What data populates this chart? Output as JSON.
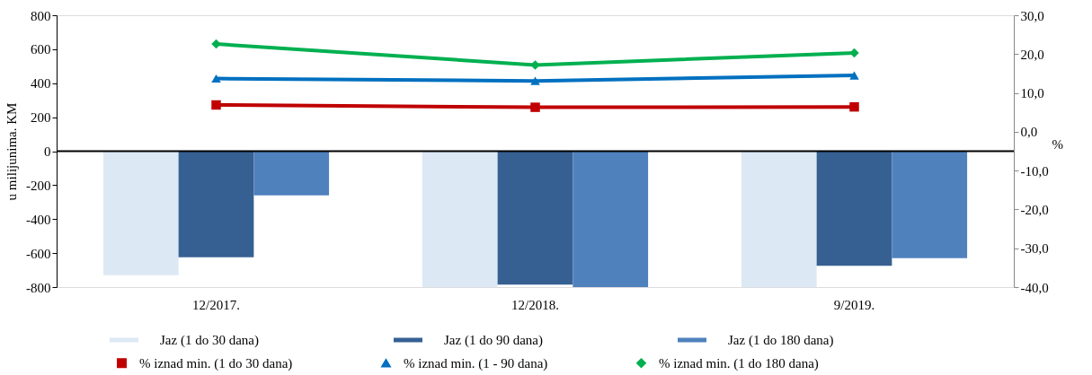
{
  "chart_data": {
    "type": "bar",
    "ylabel": "u milijunima. KM",
    "y2label": "%",
    "categories": [
      "12/2017.",
      "12/2018.",
      "9/2019."
    ],
    "series": [
      {
        "name": "Jaz (1 do 30 dana)",
        "color": "#dde8f5",
        "values": [
          -730,
          -800,
          -800
        ]
      },
      {
        "name": "Jaz (1 do 90 dana)",
        "color": "#366092",
        "values": [
          -625,
          -785,
          -675
        ]
      },
      {
        "name": "Jaz (1 do 180 dana)",
        "color": "#4f81bd",
        "values": [
          -260,
          -800,
          -630
        ]
      },
      {
        "name": "% iznad min. (1 do 30 dana)",
        "type": "line",
        "axis": "y2",
        "marker": "square",
        "color": "#c00000",
        "values": [
          6.9,
          6.3,
          6.4
        ]
      },
      {
        "name": "% iznad min. (1 - 90 dana)",
        "type": "line",
        "axis": "y2",
        "marker": "triangle",
        "color": "#0070c0",
        "values": [
          13.7,
          13.1,
          14.5
        ]
      },
      {
        "name": "% iznad min. (1 do 180 dana)",
        "type": "line",
        "axis": "y2",
        "marker": "diamond",
        "color": "#00b050",
        "values": [
          22.6,
          17.2,
          20.3
        ]
      }
    ],
    "ylim": [
      -800,
      800
    ],
    "yticks": [
      -800,
      -600,
      -400,
      -200,
      0,
      200,
      400,
      600,
      800
    ],
    "y2lim": [
      -40,
      30
    ],
    "y2ticks": [
      {
        "value": -40,
        "label": "-40,0"
      },
      {
        "value": -30,
        "label": "-30,0"
      },
      {
        "value": -20,
        "label": "-20,0"
      },
      {
        "value": -10,
        "label": "-10,0"
      },
      {
        "value": 0,
        "label": "0,0"
      },
      {
        "value": 10,
        "label": "10,0"
      },
      {
        "value": 20,
        "label": "20,0"
      },
      {
        "value": 30,
        "label": "30,0"
      }
    ],
    "ref_lines": [
      {
        "axis": "y",
        "value": 0,
        "color": "#000000"
      }
    ],
    "grid": false,
    "legend": "bottom",
    "line_style": "solid"
  }
}
